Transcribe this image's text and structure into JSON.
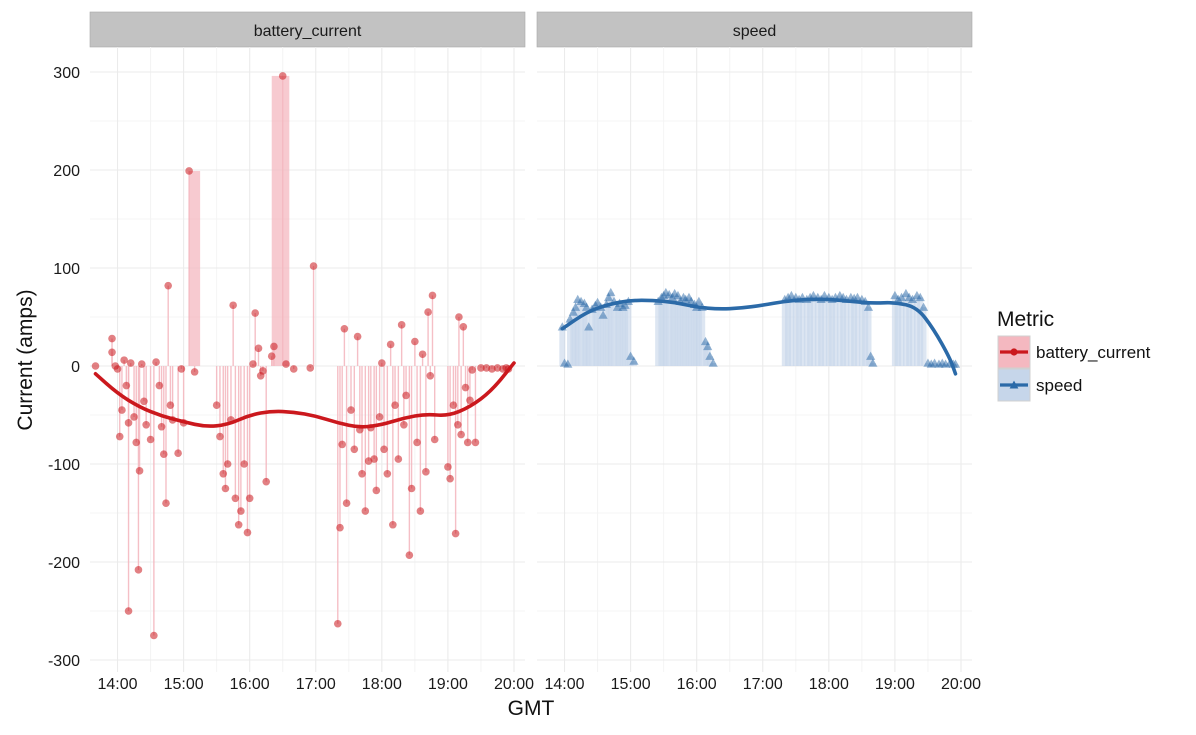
{
  "chart_data": {
    "type": "line",
    "ylabel": "Current (amps)",
    "xlabel": "GMT",
    "ylim": [
      -300,
      300
    ],
    "yticks": [
      -300,
      -200,
      -100,
      0,
      100,
      200,
      300
    ],
    "xlim": [
      "13:35",
      "20:10"
    ],
    "xticks": [
      "14:00",
      "15:00",
      "16:00",
      "17:00",
      "18:00",
      "19:00",
      "20:00"
    ],
    "grid": true,
    "facets": [
      "battery_current",
      "speed"
    ],
    "legend": {
      "title": "Metric",
      "position": "right",
      "entries": [
        "battery_current",
        "speed"
      ]
    },
    "colors": {
      "battery_current": "#cb181d",
      "battery_current_fill": "#f4b8c0",
      "speed": "#2b6aa8",
      "speed_fill": "#c6d6ea",
      "strip": "#c2c2c2",
      "grid": "#ebebeb"
    },
    "series": [
      {
        "name": "battery_current",
        "marker": "circle",
        "points": [
          [
            "13:40",
            0
          ],
          [
            "13:55",
            28
          ],
          [
            "13:55",
            14
          ],
          [
            "13:58",
            0
          ],
          [
            "14:00",
            -3
          ],
          [
            "14:02",
            -72
          ],
          [
            "14:04",
            -45
          ],
          [
            "14:06",
            6
          ],
          [
            "14:08",
            -20
          ],
          [
            "14:10",
            -58
          ],
          [
            "14:10",
            -250
          ],
          [
            "14:12",
            3
          ],
          [
            "14:15",
            -52
          ],
          [
            "14:17",
            -78
          ],
          [
            "14:19",
            -208
          ],
          [
            "14:20",
            -107
          ],
          [
            "14:22",
            2
          ],
          [
            "14:24",
            -36
          ],
          [
            "14:26",
            -60
          ],
          [
            "14:30",
            -75
          ],
          [
            "14:33",
            -275
          ],
          [
            "14:35",
            4
          ],
          [
            "14:38",
            -20
          ],
          [
            "14:40",
            -62
          ],
          [
            "14:42",
            -90
          ],
          [
            "14:44",
            -140
          ],
          [
            "14:46",
            82
          ],
          [
            "14:48",
            -40
          ],
          [
            "14:50",
            -55
          ],
          [
            "14:55",
            -89
          ],
          [
            "14:58",
            -3
          ],
          [
            "15:00",
            -58
          ],
          [
            "15:05",
            199
          ],
          [
            "15:10",
            -6
          ],
          [
            "15:30",
            -40
          ],
          [
            "15:33",
            -72
          ],
          [
            "15:36",
            -110
          ],
          [
            "15:38",
            -125
          ],
          [
            "15:40",
            -100
          ],
          [
            "15:43",
            -55
          ],
          [
            "15:45",
            62
          ],
          [
            "15:47",
            -135
          ],
          [
            "15:50",
            -162
          ],
          [
            "15:52",
            -148
          ],
          [
            "15:55",
            -100
          ],
          [
            "15:58",
            -170
          ],
          [
            "16:00",
            -135
          ],
          [
            "16:03",
            2
          ],
          [
            "16:05",
            54
          ],
          [
            "16:08",
            18
          ],
          [
            "16:10",
            -10
          ],
          [
            "16:12",
            -5
          ],
          [
            "16:15",
            -118
          ],
          [
            "16:20",
            10
          ],
          [
            "16:22",
            20
          ],
          [
            "16:30",
            296
          ],
          [
            "16:33",
            2
          ],
          [
            "16:40",
            -3
          ],
          [
            "16:55",
            -2
          ],
          [
            "16:58",
            102
          ],
          [
            "17:20",
            -263
          ],
          [
            "17:22",
            -165
          ],
          [
            "17:24",
            -80
          ],
          [
            "17:26",
            38
          ],
          [
            "17:28",
            -140
          ],
          [
            "17:32",
            -45
          ],
          [
            "17:35",
            -85
          ],
          [
            "17:38",
            30
          ],
          [
            "17:40",
            -65
          ],
          [
            "17:42",
            -110
          ],
          [
            "17:45",
            -148
          ],
          [
            "17:48",
            -97
          ],
          [
            "17:50",
            -63
          ],
          [
            "17:53",
            -95
          ],
          [
            "17:55",
            -127
          ],
          [
            "17:58",
            -52
          ],
          [
            "18:00",
            3
          ],
          [
            "18:02",
            -85
          ],
          [
            "18:05",
            -110
          ],
          [
            "18:08",
            22
          ],
          [
            "18:10",
            -162
          ],
          [
            "18:12",
            -40
          ],
          [
            "18:15",
            -95
          ],
          [
            "18:18",
            42
          ],
          [
            "18:20",
            -60
          ],
          [
            "18:22",
            -30
          ],
          [
            "18:25",
            -193
          ],
          [
            "18:27",
            -125
          ],
          [
            "18:30",
            25
          ],
          [
            "18:32",
            -78
          ],
          [
            "18:35",
            -148
          ],
          [
            "18:37",
            12
          ],
          [
            "18:40",
            -108
          ],
          [
            "18:42",
            55
          ],
          [
            "18:44",
            -10
          ],
          [
            "18:46",
            72
          ],
          [
            "18:48",
            -75
          ],
          [
            "19:00",
            -103
          ],
          [
            "19:02",
            -115
          ],
          [
            "19:05",
            -40
          ],
          [
            "19:07",
            -171
          ],
          [
            "19:09",
            -60
          ],
          [
            "19:10",
            50
          ],
          [
            "19:12",
            -70
          ],
          [
            "19:14",
            40
          ],
          [
            "19:16",
            -22
          ],
          [
            "19:18",
            -78
          ],
          [
            "19:20",
            -35
          ],
          [
            "19:22",
            -4
          ],
          [
            "19:25",
            -78
          ],
          [
            "19:30",
            -2
          ],
          [
            "19:35",
            -2
          ],
          [
            "19:40",
            -3
          ],
          [
            "19:45",
            -2
          ],
          [
            "19:50",
            -3
          ],
          [
            "19:53",
            -2
          ],
          [
            "19:55",
            -3
          ]
        ],
        "bars": [
          [
            "15:05",
            15.25,
            199
          ],
          [
            "16:20",
            16.6,
            296
          ],
          [
            "16:60",
            17.0,
            102
          ]
        ],
        "smooth": [
          [
            "13:40",
            -8
          ],
          [
            "14:00",
            -28
          ],
          [
            "14:20",
            -42
          ],
          [
            "14:40",
            -51
          ],
          [
            "15:00",
            -57
          ],
          [
            "15:20",
            -62
          ],
          [
            "15:40",
            -60
          ],
          [
            "16:00",
            -50
          ],
          [
            "16:20",
            -46
          ],
          [
            "16:40",
            -47
          ],
          [
            "17:00",
            -51
          ],
          [
            "17:20",
            -58
          ],
          [
            "17:40",
            -63
          ],
          [
            "18:00",
            -60
          ],
          [
            "18:20",
            -53
          ],
          [
            "18:40",
            -49
          ],
          [
            "19:00",
            -51
          ],
          [
            "19:20",
            -42
          ],
          [
            "19:40",
            -25
          ],
          [
            "20:00",
            3
          ]
        ]
      },
      {
        "name": "speed",
        "marker": "triangle",
        "points": [
          [
            "13:58",
            40
          ],
          [
            "14:00",
            3
          ],
          [
            "14:03",
            2
          ],
          [
            "14:05",
            48
          ],
          [
            "14:08",
            55
          ],
          [
            "14:10",
            60
          ],
          [
            "14:12",
            68
          ],
          [
            "14:15",
            66
          ],
          [
            "14:18",
            64
          ],
          [
            "14:20",
            60
          ],
          [
            "14:22",
            40
          ],
          [
            "14:25",
            58
          ],
          [
            "14:28",
            62
          ],
          [
            "14:30",
            65
          ],
          [
            "14:33",
            60
          ],
          [
            "14:35",
            52
          ],
          [
            "14:38",
            63
          ],
          [
            "14:40",
            70
          ],
          [
            "14:42",
            75
          ],
          [
            "14:45",
            66
          ],
          [
            "14:48",
            60
          ],
          [
            "14:50",
            64
          ],
          [
            "14:53",
            60
          ],
          [
            "14:55",
            62
          ],
          [
            "14:58",
            66
          ],
          [
            "15:00",
            10
          ],
          [
            "15:03",
            5
          ],
          [
            "15:25",
            66
          ],
          [
            "15:28",
            70
          ],
          [
            "15:30",
            72
          ],
          [
            "15:32",
            75
          ],
          [
            "15:35",
            73
          ],
          [
            "15:38",
            70
          ],
          [
            "15:40",
            74
          ],
          [
            "15:43",
            72
          ],
          [
            "15:45",
            66
          ],
          [
            "15:48",
            70
          ],
          [
            "15:50",
            68
          ],
          [
            "15:53",
            70
          ],
          [
            "15:55",
            66
          ],
          [
            "15:58",
            63
          ],
          [
            "16:00",
            60
          ],
          [
            "16:02",
            66
          ],
          [
            "16:05",
            60
          ],
          [
            "16:08",
            25
          ],
          [
            "16:10",
            20
          ],
          [
            "16:12",
            10
          ],
          [
            "16:15",
            3
          ],
          [
            "17:20",
            68
          ],
          [
            "17:23",
            70
          ],
          [
            "17:26",
            72
          ],
          [
            "17:30",
            70
          ],
          [
            "17:33",
            68
          ],
          [
            "17:36",
            70
          ],
          [
            "17:40",
            68
          ],
          [
            "17:43",
            70
          ],
          [
            "17:46",
            72
          ],
          [
            "17:50",
            70
          ],
          [
            "17:53",
            68
          ],
          [
            "17:56",
            72
          ],
          [
            "18:00",
            70
          ],
          [
            "18:03",
            68
          ],
          [
            "18:06",
            70
          ],
          [
            "18:10",
            72
          ],
          [
            "18:13",
            70
          ],
          [
            "18:16",
            68
          ],
          [
            "18:20",
            70
          ],
          [
            "18:23",
            69
          ],
          [
            "18:26",
            70
          ],
          [
            "18:30",
            68
          ],
          [
            "18:33",
            66
          ],
          [
            "18:36",
            60
          ],
          [
            "18:38",
            10
          ],
          [
            "18:40",
            3
          ],
          [
            "19:00",
            72
          ],
          [
            "19:03",
            68
          ],
          [
            "19:06",
            70
          ],
          [
            "19:10",
            74
          ],
          [
            "19:13",
            70
          ],
          [
            "19:16",
            68
          ],
          [
            "19:20",
            72
          ],
          [
            "19:23",
            70
          ],
          [
            "19:26",
            60
          ],
          [
            "19:30",
            3
          ],
          [
            "19:33",
            2
          ],
          [
            "19:36",
            3
          ],
          [
            "19:40",
            2
          ],
          [
            "19:43",
            3
          ],
          [
            "19:46",
            2
          ],
          [
            "19:50",
            3
          ],
          [
            "19:53",
            2
          ],
          [
            "19:55",
            2
          ]
        ],
        "smooth": [
          [
            "13:58",
            38
          ],
          [
            "14:20",
            55
          ],
          [
            "14:40",
            63
          ],
          [
            "15:00",
            67
          ],
          [
            "15:20",
            67
          ],
          [
            "15:40",
            65
          ],
          [
            "16:00",
            60
          ],
          [
            "16:20",
            58
          ],
          [
            "16:40",
            59
          ],
          [
            "17:00",
            62
          ],
          [
            "17:20",
            66
          ],
          [
            "17:40",
            68
          ],
          [
            "18:00",
            68
          ],
          [
            "18:20",
            66
          ],
          [
            "18:40",
            64
          ],
          [
            "19:00",
            65
          ],
          [
            "19:20",
            60
          ],
          [
            "19:35",
            38
          ],
          [
            "19:50",
            8
          ],
          [
            "19:55",
            -8
          ]
        ]
      }
    ]
  }
}
